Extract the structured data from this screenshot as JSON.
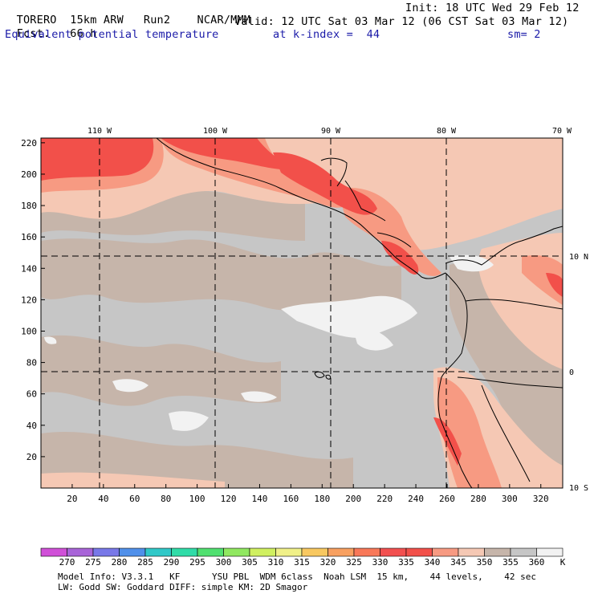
{
  "header": {
    "model": "TORERO",
    "resolution": "15km ARW",
    "run": "Run2",
    "org": "NCAR/MMM",
    "init": "Init: 18 UTC Wed 29 Feb 12",
    "fcst_label": "Fcst.",
    "fcst_value": "66 h",
    "valid": "Valid: 12 UTC Sat 03 Mar 12 (06 CST Sat 03 Mar 12)",
    "field": "Equivalent potential temperature",
    "level": "at k-index =  44",
    "smoothing": "sm= 2"
  },
  "map": {
    "top_lon_labels": [
      "110 W",
      "100 W",
      "90 W",
      "80 W",
      "70 W"
    ],
    "right_lat_labels": [
      "10 N",
      "0",
      "10 S"
    ],
    "left_y_labels": [
      "220",
      "200",
      "180",
      "160",
      "140",
      "120",
      "100",
      "80",
      "60",
      "40",
      "20"
    ],
    "bottom_x_labels": [
      "20",
      "40",
      "60",
      "80",
      "100",
      "120",
      "140",
      "160",
      "180",
      "200",
      "220",
      "240",
      "260",
      "280",
      "300",
      "320"
    ],
    "colors": {
      "background_gray": "#c6c6c6",
      "tan": "#c6b5aa",
      "light_salmon": "#f5c8b4",
      "salmon": "#f79a82",
      "red": "#f2504a",
      "white": "#f2f2f2"
    }
  },
  "colorbar": {
    "labels": [
      "270",
      "275",
      "280",
      "285",
      "290",
      "295",
      "300",
      "305",
      "310",
      "315",
      "320",
      "325",
      "330",
      "335",
      "340",
      "345",
      "350",
      "355",
      "360"
    ],
    "unit": "K",
    "colors": [
      "#d050d8",
      "#a864d8",
      "#7878e8",
      "#5090ea",
      "#30c8c8",
      "#30dca8",
      "#50e070",
      "#90e860",
      "#d0f060",
      "#f0f088",
      "#f8c860",
      "#f8a060",
      "#f87858",
      "#f25050",
      "#f2504a",
      "#f79a82",
      "#f5c8b4",
      "#c6b5aa",
      "#c6c6c6",
      "#f2f2f2"
    ]
  },
  "footer": {
    "line1": "Model Info: V3.3.1   KF      YSU PBL  WDM 6class  Noah LSM  15 km,    44 levels,    42 sec",
    "line2": "LW: Godd SW: Goddard DIFF: simple KM: 2D Smagor"
  }
}
